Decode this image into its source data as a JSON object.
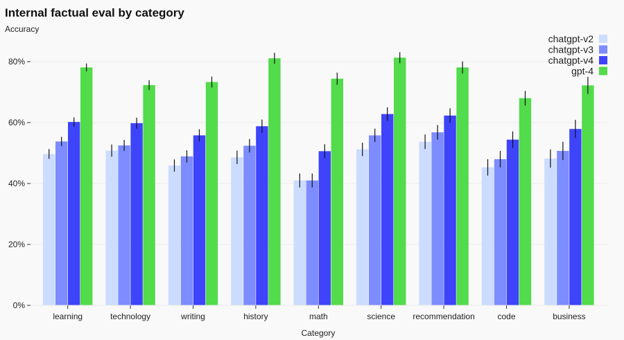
{
  "chart_data": {
    "type": "bar",
    "title": "Internal factual eval by category",
    "ylabel": "Accuracy",
    "xlabel": "Category",
    "ylim": [
      0,
      0.9
    ],
    "yticks": [
      0,
      0.2,
      0.4,
      0.6,
      0.8
    ],
    "ytick_labels": [
      "0%",
      "20%",
      "40%",
      "60%",
      "80%"
    ],
    "grid": true,
    "legend_position": "top-right",
    "categories": [
      "learning",
      "technology",
      "writing",
      "history",
      "math",
      "science",
      "recommendation",
      "code",
      "business"
    ],
    "series": [
      {
        "name": "chatgpt-v2",
        "color": "#ccdcff",
        "values": [
          0.497,
          0.508,
          0.459,
          0.486,
          0.41,
          0.512,
          0.537,
          0.453,
          0.482
        ],
        "errors": [
          0.016,
          0.02,
          0.02,
          0.022,
          0.023,
          0.022,
          0.024,
          0.027,
          0.03
        ]
      },
      {
        "name": "chatgpt-v3",
        "color": "#7d8cff",
        "values": [
          0.538,
          0.525,
          0.489,
          0.524,
          0.41,
          0.558,
          0.568,
          0.48,
          0.507
        ],
        "errors": [
          0.015,
          0.018,
          0.02,
          0.022,
          0.023,
          0.022,
          0.024,
          0.027,
          0.03
        ]
      },
      {
        "name": "chatgpt-v4",
        "color": "#3d44fa",
        "values": [
          0.602,
          0.598,
          0.558,
          0.588,
          0.506,
          0.628,
          0.623,
          0.544,
          0.579
        ],
        "errors": [
          0.015,
          0.018,
          0.02,
          0.022,
          0.023,
          0.022,
          0.024,
          0.027,
          0.03
        ]
      },
      {
        "name": "gpt-4",
        "color": "#52db4a",
        "values": [
          0.781,
          0.723,
          0.733,
          0.811,
          0.744,
          0.813,
          0.781,
          0.68,
          0.722
        ],
        "errors": [
          0.013,
          0.016,
          0.018,
          0.018,
          0.02,
          0.018,
          0.02,
          0.024,
          0.028
        ]
      }
    ]
  }
}
